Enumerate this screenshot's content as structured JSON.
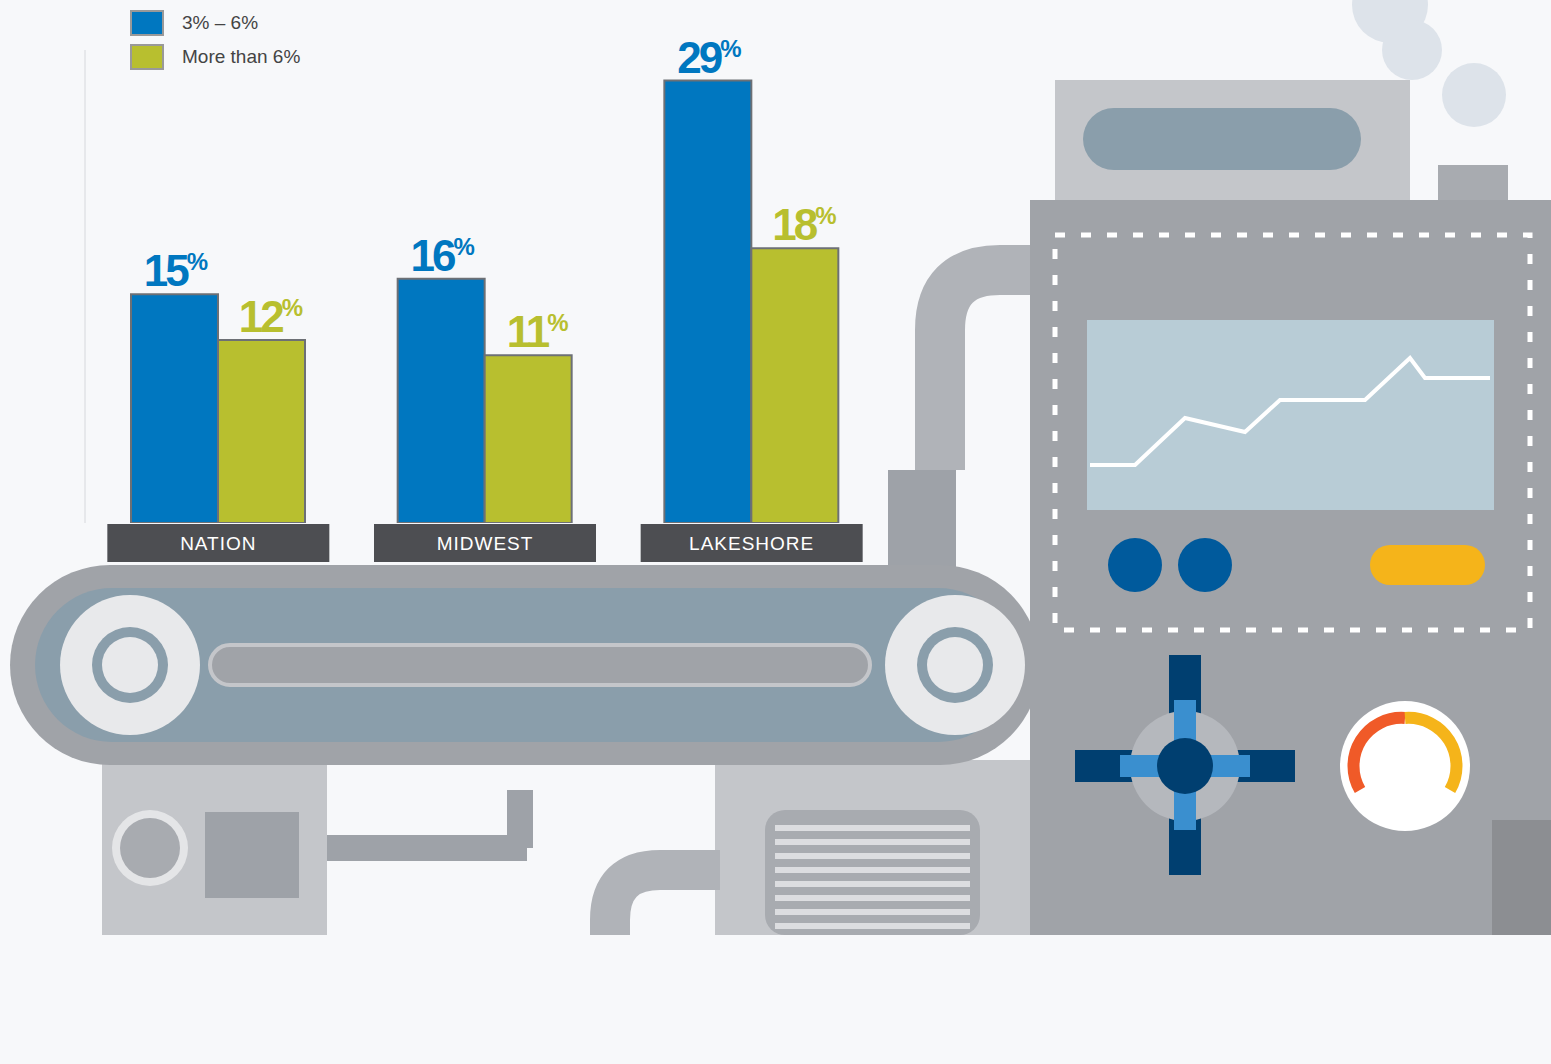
{
  "chart_data": {
    "type": "bar",
    "categories": [
      "NATION",
      "MIDWEST",
      "LAKESHORE"
    ],
    "series": [
      {
        "name": "3% – 6%",
        "color": "#0077c0",
        "values": [
          15,
          16,
          29
        ],
        "value_labels": [
          "15%",
          "16%",
          "29%"
        ]
      },
      {
        "name": "More than 6%",
        "color": "#b8bf2f",
        "values": [
          12,
          11,
          18
        ],
        "value_labels": [
          "12%",
          "11%",
          "18%"
        ]
      }
    ],
    "ylim": [
      0,
      31
    ],
    "tick_labels": false,
    "data_labels": true,
    "legend": "top-left",
    "grid": false
  }
}
